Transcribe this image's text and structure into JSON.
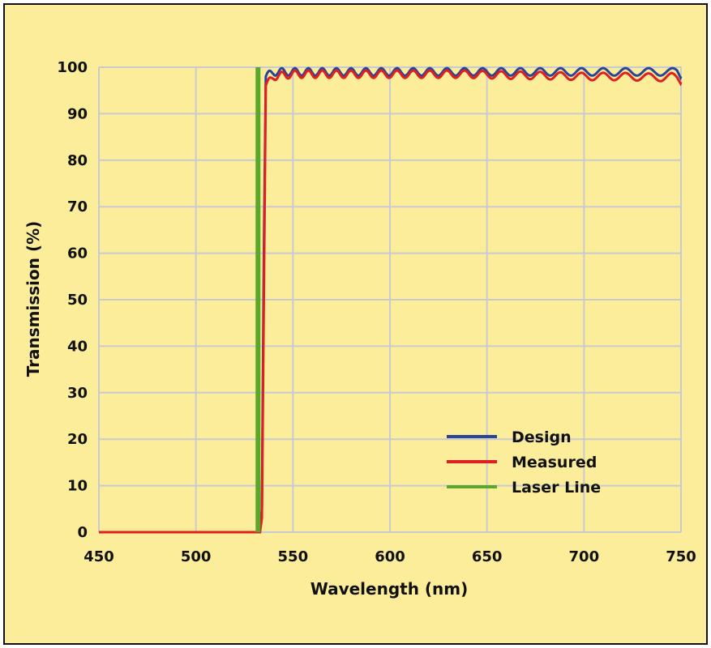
{
  "chart_data": {
    "type": "line",
    "xlabel": "Wavelength (nm)",
    "ylabel": "Transmission (%)",
    "xlim": [
      450,
      750
    ],
    "ylim": [
      0,
      100
    ],
    "xticks": [
      450,
      500,
      550,
      600,
      650,
      700,
      750
    ],
    "yticks": [
      0,
      10,
      20,
      30,
      40,
      50,
      60,
      70,
      80,
      90,
      100
    ],
    "grid": true,
    "legend_position": "bottom-right",
    "background_color": "#fbed9a",
    "grid_color": "#c9c9d2",
    "series": [
      {
        "name": "Design",
        "color": "#2b4596",
        "x": [
          450,
          533,
          534,
          535,
          536,
          540,
          550,
          560,
          580,
          600,
          620,
          640,
          660,
          680,
          700,
          720,
          740,
          745,
          748,
          750
        ],
        "y": [
          0,
          0,
          5,
          60,
          98,
          99,
          99,
          99,
          99,
          99,
          99,
          99,
          99,
          99,
          99,
          99,
          99,
          99,
          99,
          98
        ]
      },
      {
        "name": "Measured",
        "color": "#e02020",
        "x": [
          450,
          533,
          534,
          535,
          536,
          540,
          550,
          560,
          580,
          600,
          620,
          640,
          660,
          680,
          700,
          720,
          740,
          745,
          748,
          750
        ],
        "y": [
          0,
          0,
          3,
          50,
          96,
          98,
          98.5,
          98.5,
          98.5,
          98.5,
          98.5,
          98.5,
          98.3,
          98.2,
          98,
          98,
          97.8,
          98,
          97.5,
          96.8
        ]
      },
      {
        "name": "Laser Line",
        "color": "#5aa82a",
        "x": [
          532,
          532
        ],
        "y": [
          0,
          100
        ]
      }
    ]
  }
}
